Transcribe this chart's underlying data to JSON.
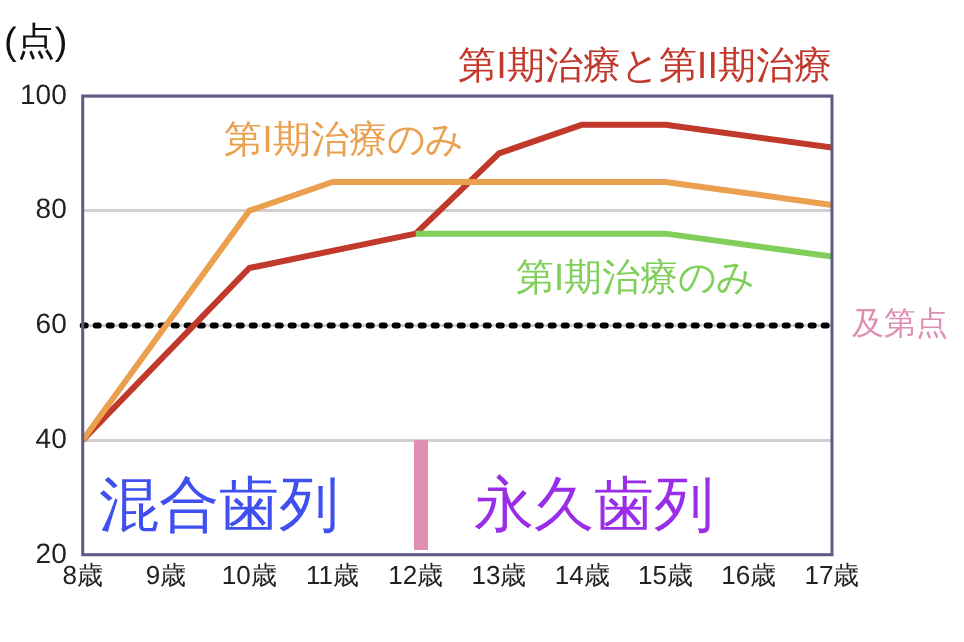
{
  "chart_data": {
    "type": "line",
    "ylabel": "(点)",
    "xlim": [
      8,
      17
    ],
    "xticks": [
      {
        "value": 8,
        "label": "8歳"
      },
      {
        "value": 9,
        "label": "9歳"
      },
      {
        "value": 10,
        "label": "10歳"
      },
      {
        "value": 11,
        "label": "11歳"
      },
      {
        "value": 12,
        "label": "12歳"
      },
      {
        "value": 13,
        "label": "13歳"
      },
      {
        "value": 14,
        "label": "14歳"
      },
      {
        "value": 15,
        "label": "15歳"
      },
      {
        "value": 16,
        "label": "16歳"
      },
      {
        "value": 17,
        "label": "17歳"
      }
    ],
    "ylim": [
      20,
      100
    ],
    "yticks": [
      20,
      40,
      60,
      80,
      100
    ],
    "grid": "y",
    "legend": false,
    "marker": "none",
    "line_style": "solid",
    "series": [
      {
        "name": "第I期治療のみ",
        "color": "#eaa04e",
        "x": [
          8,
          10,
          11,
          12,
          13,
          14,
          15,
          17
        ],
        "values": [
          40,
          80,
          85,
          85,
          85,
          85,
          85,
          81
        ]
      },
      {
        "name": "第I期治療のみ",
        "color": "#7fcf5a",
        "x": [
          12,
          13,
          14,
          15,
          17
        ],
        "values": [
          76,
          76,
          76,
          76,
          72
        ]
      },
      {
        "name": "第I期治療と第II期治療",
        "color": "#c0392b",
        "x": [
          8,
          10,
          12,
          13,
          14,
          15,
          17
        ],
        "values": [
          40,
          70,
          76,
          90,
          95,
          95,
          91
        ]
      }
    ],
    "ref_lines": [
      {
        "axis": "y",
        "value": 60,
        "label": "及第点",
        "color": "#000000",
        "line_style": "dotted"
      }
    ],
    "annotations": [
      "混合歯列",
      "永久歯列"
    ]
  }
}
